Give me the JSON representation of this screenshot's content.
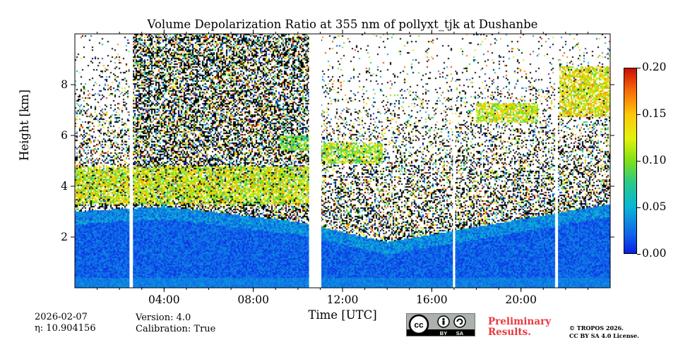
{
  "chart_data": {
    "type": "heatmap",
    "title": "Volume Depolarization Ratio at 355 nm of pollyxt_tjk at Dushanbe",
    "xlabel": "Time [UTC]",
    "ylabel": "Height [km]",
    "xlim_hours": [
      0,
      24
    ],
    "ylim_km": [
      0,
      10
    ],
    "x_ticks": [
      {
        "hour": 4,
        "label": "04:00"
      },
      {
        "hour": 8,
        "label": "08:00"
      },
      {
        "hour": 12,
        "label": "12:00"
      },
      {
        "hour": 16,
        "label": "16:00"
      },
      {
        "hour": 20,
        "label": "20:00"
      }
    ],
    "y_ticks": [
      {
        "km": 2,
        "label": "2"
      },
      {
        "km": 4,
        "label": "4"
      },
      {
        "km": 6,
        "label": "6"
      },
      {
        "km": 8,
        "label": "8"
      }
    ],
    "colorbar": {
      "min": 0.0,
      "max": 0.2,
      "ticks": [
        {
          "value": 0.0,
          "label": "0.00"
        },
        {
          "value": 0.05,
          "label": "0.05"
        },
        {
          "value": 0.1,
          "label": "0.10"
        },
        {
          "value": 0.15,
          "label": "0.15"
        },
        {
          "value": 0.2,
          "label": "0.20"
        }
      ],
      "colors": [
        "#0a1fe0",
        "#0ab5d6",
        "#7ee018",
        "#fdc70b",
        "#c80f06"
      ]
    },
    "data_gaps_hours": [
      [
        2.45,
        2.6
      ],
      [
        10.5,
        11.05
      ],
      [
        16.95,
        17.05
      ],
      [
        21.55,
        21.65
      ]
    ],
    "boundary_layer_top_km": [
      {
        "hour": 0,
        "km": 3.0
      },
      {
        "hour": 4,
        "km": 3.2
      },
      {
        "hour": 10,
        "km": 2.6
      },
      {
        "hour": 14,
        "km": 1.8
      },
      {
        "hour": 18,
        "km": 2.4
      },
      {
        "hour": 24,
        "km": 3.3
      }
    ],
    "aerosol_layers": [
      {
        "start": 0.0,
        "end": 10.5,
        "bottom_km": 3.3,
        "top_km": 4.8,
        "depol": 0.12
      },
      {
        "start": 9.2,
        "end": 10.5,
        "bottom_km": 5.4,
        "top_km": 6.0,
        "depol": 0.1
      },
      {
        "start": 11.05,
        "end": 13.8,
        "bottom_km": 4.9,
        "top_km": 5.7,
        "depol": 0.11
      },
      {
        "start": 18.0,
        "end": 20.8,
        "bottom_km": 6.5,
        "top_km": 7.3,
        "depol": 0.12
      },
      {
        "start": 21.7,
        "end": 24.0,
        "bottom_km": 6.7,
        "top_km": 8.7,
        "depol": 0.13
      }
    ]
  },
  "footer": {
    "date": "2026-02-07",
    "eta": "η: 10.904156",
    "version": "Version: 4.0",
    "calibration": "Calibration: True",
    "license_icons": [
      "cc",
      "by",
      "sa"
    ],
    "license_by": "BY",
    "license_sa": "SA",
    "preliminary": "Preliminary",
    "results": "Results.",
    "copyright1": "© TROPOS 2026.",
    "copyright2": "CC BY SA 4.0 License."
  }
}
